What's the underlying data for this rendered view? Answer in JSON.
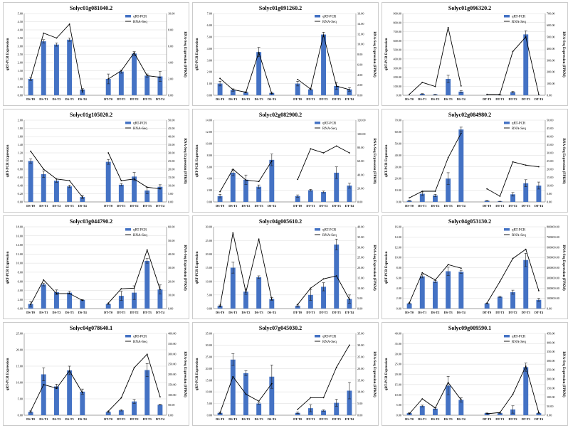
{
  "colors": {
    "bar": "#4472c4",
    "line": "#000000",
    "error_bar": "#222222",
    "grid": "#d9d9d9",
    "axis": "#888888",
    "panel_border": "#bfbfbf",
    "text": "#000000"
  },
  "chart_data": [
    {
      "type": "bar+line",
      "title": "Solyc01g081040.2",
      "ylabel": "qRT-PCR Expression",
      "y2label": "RNA-Seq Expression (FPKM)",
      "legend": [
        "qRT-PCR",
        "RNA-Seq"
      ],
      "legend_position": "top-right",
      "categories": [
        "DS-T0",
        "DS-T1",
        "DS-T2",
        "DS-T3",
        "DS-T4",
        "DT-T0",
        "DT-T1",
        "DT-T2",
        "DT-T3",
        "DT-T4"
      ],
      "ylim": [
        0,
        5
      ],
      "yticks": [
        "0.00",
        "0.50",
        "1.00",
        "1.50",
        "2.00",
        "2.50",
        "3.00",
        "3.50",
        "4.00",
        "4.50",
        "5.00"
      ],
      "y2lim": [
        0,
        10
      ],
      "y2ticks": [
        "0.00",
        "2.00",
        "4.00",
        "6.00",
        "8.00",
        "10.00"
      ],
      "qrt_pcr": [
        1.0,
        3.3,
        3.1,
        3.4,
        0.35,
        1.0,
        1.45,
        2.55,
        1.2,
        1.15
      ],
      "error": [
        0.1,
        0.1,
        0.1,
        0.1,
        0.05,
        0.3,
        0.1,
        0.12,
        0.1,
        0.3
      ],
      "rna_seq": [
        2.0,
        7.6,
        7.0,
        8.7,
        0.4,
        2.0,
        3.0,
        5.2,
        2.4,
        2.2
      ]
    },
    {
      "type": "bar+line",
      "title": "Solyc01g091260.2",
      "ylabel": "qRT-PCR Expression",
      "y2label": "RNA-Seq Expression (FPKM)",
      "legend": [
        "qRT-PCR",
        "RNA-Seq"
      ],
      "legend_position": "top-right",
      "categories": [
        "DS-T0",
        "DS-T1",
        "DS-T2",
        "DS-T3",
        "DS-T4",
        "DT-T0",
        "DT-T1",
        "DT-T2",
        "DT-T3",
        "DT-T4"
      ],
      "ylim": [
        0,
        7
      ],
      "yticks": [
        "0.00",
        "1.00",
        "2.00",
        "3.00",
        "4.00",
        "5.00",
        "6.00",
        "7.00"
      ],
      "y2lim": [
        0,
        16
      ],
      "y2ticks": [
        "0.00",
        "2.00",
        "4.00",
        "6.00",
        "8.00",
        "10.00",
        "12.00",
        "14.00",
        "16.00"
      ],
      "qrt_pcr": [
        1.0,
        0.45,
        0.25,
        3.7,
        0.2,
        1.0,
        0.5,
        5.2,
        0.8,
        0.5
      ],
      "error": [
        0.2,
        0.1,
        0.05,
        0.4,
        0.05,
        0.2,
        0.05,
        0.2,
        0.3,
        0.15
      ],
      "rna_seq": [
        3.3,
        1.1,
        0.6,
        8.4,
        0.3,
        3.1,
        1.2,
        11.8,
        1.8,
        1.1
      ]
    },
    {
      "type": "bar+line",
      "title": "Solyc01g096320.2",
      "ylabel": "qRT-PCR Expression",
      "y2label": "RNA-Seq Expression (FPKM)",
      "legend": [
        "qRT-PCR",
        "RNA-Seq"
      ],
      "legend_position": "top-right",
      "categories": [
        "DS-T0",
        "DS-T1",
        "DS-T2",
        "DS-T3",
        "DS-T4",
        "DT-T0",
        "DT-T1",
        "DT-T2",
        "DT-T3",
        "DT-T4"
      ],
      "ylim": [
        0,
        900
      ],
      "yticks": [
        "0.00",
        "100.00",
        "200.00",
        "300.00",
        "400.00",
        "500.00",
        "600.00",
        "700.00",
        "800.00",
        "900.00"
      ],
      "y2lim": [
        0,
        700
      ],
      "y2ticks": [
        "0.00",
        "100.00",
        "200.00",
        "300.00",
        "400.00",
        "500.00",
        "600.00",
        "700.00"
      ],
      "qrt_pcr": [
        1,
        15,
        8,
        180,
        40,
        1,
        3,
        35,
        670,
        1
      ],
      "error": [
        0,
        3,
        2,
        40,
        10,
        0,
        1,
        8,
        40,
        0
      ],
      "rna_seq": [
        8,
        110,
        75,
        580,
        80,
        8,
        10,
        375,
        500,
        8
      ]
    },
    {
      "type": "bar+line",
      "title": "Solyc01g105020.2",
      "ylabel": "qRT-PCR Expression",
      "y2label": "RNA-Seq Expression (FPKM)",
      "legend": [
        "qRT-PCR",
        "RNA-Seq"
      ],
      "legend_position": "top-right",
      "categories": [
        "DS-T0",
        "DS-T1",
        "DS-T2",
        "DS-T3",
        "DS-T4",
        "DT-T0",
        "DT-T1",
        "DT-T2",
        "DT-T3",
        "DT-T4"
      ],
      "ylim": [
        0,
        2
      ],
      "yticks": [
        "0.00",
        "0.20",
        "0.40",
        "0.60",
        "0.80",
        "1.00",
        "1.20",
        "1.40",
        "1.60",
        "1.80",
        "2.00"
      ],
      "y2lim": [
        0,
        50
      ],
      "y2ticks": [
        "0.00",
        "5.00",
        "10.00",
        "15.00",
        "20.00",
        "25.00",
        "30.00",
        "35.00",
        "40.00",
        "45.00",
        "50.00"
      ],
      "qrt_pcr": [
        1.0,
        0.68,
        0.52,
        0.38,
        0.12,
        0.98,
        0.42,
        0.62,
        0.28,
        0.37
      ],
      "error": [
        0.05,
        0.08,
        0.04,
        0.03,
        0.04,
        0.06,
        0.03,
        0.1,
        0.08,
        0.05
      ],
      "rna_seq": [
        31,
        20,
        14,
        13,
        3,
        30,
        13,
        14,
        9,
        8
      ]
    },
    {
      "type": "bar+line",
      "title": "Solyc02g082900.2",
      "ylabel": "qRT-PCR Expression",
      "y2label": "RNA-Seq Expression (FPKM)",
      "legend": [
        "qRT-PCR",
        "RNA-Seq"
      ],
      "legend_position": "top-right",
      "categories": [
        "DS-T0",
        "DS-T1",
        "DS-T2",
        "DS-T3",
        "DS-T4",
        "DT-T0",
        "DT-T1",
        "DT-T2",
        "DT-T3",
        "DT-T4"
      ],
      "ylim": [
        0,
        14
      ],
      "yticks": [
        "0.00",
        "2.00",
        "4.00",
        "6.00",
        "8.00",
        "10.00",
        "12.00",
        "14.00"
      ],
      "y2lim": [
        0,
        120
      ],
      "y2ticks": [
        "0.00",
        "20.00",
        "40.00",
        "60.00",
        "80.00",
        "100.00",
        "120.00"
      ],
      "qrt_pcr": [
        1.0,
        5.0,
        3.8,
        2.6,
        7.2,
        1.0,
        2.0,
        1.7,
        5.0,
        2.8
      ],
      "error": [
        0.3,
        0.5,
        0.8,
        0.3,
        1.0,
        0.2,
        0.15,
        0.15,
        1.0,
        0.4
      ],
      "rna_seq": [
        15,
        48,
        32,
        30,
        60,
        33,
        78,
        72,
        82,
        72
      ]
    },
    {
      "type": "bar+line",
      "title": "Solyc02g084980.2",
      "ylabel": "qRT-PCR Expression",
      "y2label": "RNA-Seq Expression (FPKM)",
      "legend": [
        "qRT-PCR",
        "RNA-Seq"
      ],
      "legend_position": "top-right",
      "categories": [
        "DS-T0",
        "DS-T1",
        "DS-T2",
        "DS-T3",
        "DS-T4",
        "DT-T0",
        "DT-T1",
        "DT-T2",
        "DT-T3",
        "DT-T4"
      ],
      "ylim": [
        0,
        70
      ],
      "yticks": [
        "0.00",
        "10.00",
        "20.00",
        "30.00",
        "40.00",
        "50.00",
        "60.00",
        "70.00"
      ],
      "y2lim": [
        0,
        50
      ],
      "y2ticks": [
        "0.00",
        "5.00",
        "10.00",
        "15.00",
        "20.00",
        "25.00",
        "30.00",
        "35.00",
        "40.00",
        "45.00",
        "50.00"
      ],
      "qrt_pcr": [
        1.0,
        7.0,
        5.5,
        20,
        62,
        1.0,
        0.5,
        6.5,
        16,
        14
      ],
      "error": [
        0.3,
        1.5,
        1.0,
        5.0,
        2.0,
        0.2,
        0.1,
        1.5,
        3.0,
        3.0
      ],
      "rna_seq": [
        2.5,
        6.5,
        6.5,
        27,
        42,
        8,
        3.5,
        24.5,
        22.5,
        21.5
      ]
    },
    {
      "type": "bar+line",
      "title": "Solyc03g044790.2",
      "ylabel": "qRT-PCR Expression",
      "y2label": "RNA-Seq Expression (FPKM)",
      "legend": [
        "qRT-PCR",
        "RNA-Seq"
      ],
      "legend_position": "top-right",
      "categories": [
        "DS-T0",
        "DS-T1",
        "DS-T2",
        "DS-T3",
        "DS-T4",
        "DT-T0",
        "DT-T1",
        "DT-T2",
        "DT-T3",
        "DT-T4"
      ],
      "ylim": [
        0,
        18
      ],
      "yticks": [
        "0.00",
        "2.00",
        "4.00",
        "6.00",
        "8.00",
        "10.00",
        "12.00",
        "14.00",
        "16.00",
        "18.00"
      ],
      "y2lim": [
        0,
        60
      ],
      "y2ticks": [
        "0.00",
        "10.00",
        "20.00",
        "30.00",
        "40.00",
        "50.00",
        "60.00"
      ],
      "qrt_pcr": [
        1.0,
        5.3,
        3.6,
        3.5,
        1.9,
        1.0,
        2.8,
        3.5,
        10.5,
        4.2
      ],
      "error": [
        0.5,
        0.3,
        0.5,
        0.3,
        0.1,
        0.1,
        1.0,
        1.5,
        0.5,
        1.0
      ],
      "rna_seq": [
        3,
        21,
        11,
        11,
        6,
        4,
        14.5,
        15,
        43,
        14
      ]
    },
    {
      "type": "bar+line",
      "title": "Solyc04g005610.2",
      "ylabel": "qRT-PCR Expression",
      "y2label": "RNA-Seq Expression (FPKM)",
      "legend": [
        "qRT-PCR",
        "RNA-Seq"
      ],
      "legend_position": "top-right",
      "categories": [
        "DS-T0",
        "DS-T1",
        "DS-T2",
        "DS-T3",
        "DS-T4",
        "DT-T0",
        "DT-T1",
        "DT-T2",
        "DT-T3",
        "DT-T4"
      ],
      "ylim": [
        0,
        30
      ],
      "yticks": [
        "0.00",
        "5.00",
        "10.00",
        "15.00",
        "20.00",
        "25.00",
        "30.00"
      ],
      "y2lim": [
        0,
        40
      ],
      "y2ticks": [
        "0.00",
        "5.00",
        "10.00",
        "15.00",
        "20.00",
        "25.00",
        "30.00",
        "35.00",
        "40.00"
      ],
      "qrt_pcr": [
        1.0,
        15,
        6.2,
        11.5,
        3.5,
        1.0,
        5.0,
        8.0,
        23.5,
        3.5
      ],
      "error": [
        0.3,
        2.0,
        1.0,
        0.5,
        0.5,
        0.3,
        2.0,
        1.5,
        2.0,
        1.5
      ],
      "rna_seq": [
        1,
        37,
        8,
        34,
        4.5,
        2,
        10,
        14.5,
        16,
        4.5
      ]
    },
    {
      "type": "bar+line",
      "title": "Solyc04g053130.2",
      "ylabel": "qRT-PCR Expression",
      "y2label": "RNA-Seq Expression (FPKM)",
      "legend": [
        "qRT-PCR",
        "RNA-Seq"
      ],
      "legend_position": "top-right",
      "categories": [
        "DS-T0",
        "DS-T1",
        "DS-T2",
        "DS-T3",
        "DS-T4",
        "DT-T0",
        "DT-T1",
        "DT-T2",
        "DT-T3",
        "DT-T4"
      ],
      "ylim": [
        0,
        16
      ],
      "yticks": [
        "0.00",
        "2.00",
        "4.00",
        "6.00",
        "8.00",
        "10.00",
        "12.00",
        "14.00",
        "16.00"
      ],
      "y2lim": [
        0,
        800000
      ],
      "y2ticks": [
        "0.00",
        "100000.00",
        "200000.00",
        "300000.00",
        "400000.00",
        "500000.00",
        "600000.00",
        "700000.00",
        "800000.00"
      ],
      "qrt_pcr": [
        1.0,
        6.3,
        5.3,
        7.3,
        7.2,
        1.0,
        2.3,
        3.2,
        9.5,
        1.7
      ],
      "error": [
        0.1,
        0.3,
        0.2,
        0.8,
        0.3,
        0.05,
        0.1,
        0.4,
        1.3,
        0.3
      ],
      "rna_seq": [
        55000,
        350000,
        280000,
        430000,
        395000,
        55000,
        265000,
        490000,
        580000,
        175000
      ]
    },
    {
      "type": "bar+line",
      "title": "Solyc04g078640.1",
      "ylabel": "qRT-PCR Expression",
      "y2label": "RNA-Seq Expression (FPKM)",
      "legend": [
        "qRT-PCR",
        "RNA-Seq"
      ],
      "legend_position": "top-right",
      "categories": [
        "DS-T0",
        "DS-T1",
        "DS-T2",
        "DS-T3",
        "DS-T4",
        "DT-T0",
        "DT-T1",
        "DT-T2",
        "DT-T3",
        "DT-T4"
      ],
      "ylim": [
        0,
        25
      ],
      "yticks": [
        "0.00",
        "5.00",
        "10.00",
        "15.00",
        "20.00",
        "25.00"
      ],
      "y2lim": [
        0,
        400
      ],
      "y2ticks": [
        "0.00",
        "50.00",
        "100.00",
        "150.00",
        "200.00",
        "250.00",
        "300.00",
        "350.00",
        "400.00"
      ],
      "qrt_pcr": [
        1.0,
        12.5,
        8.8,
        13.7,
        7.2,
        1.0,
        1.5,
        4.2,
        13.8,
        3.2
      ],
      "error": [
        0.3,
        2.0,
        0.7,
        1.3,
        0.8,
        0.2,
        0.2,
        0.6,
        2.0,
        0.1
      ],
      "rna_seq": [
        20,
        150,
        132,
        217,
        110,
        20,
        85,
        232,
        298,
        90
      ]
    },
    {
      "type": "bar+line",
      "title": "Solyc07g045030.2",
      "ylabel": "qRT-PCR Expression",
      "y2label": "RNA-Seq Expression (FPKM)",
      "legend": [
        "qRT-PCR",
        "RNA-Seq"
      ],
      "legend_position": "top-right",
      "categories": [
        "DS-T0",
        "DS-T1",
        "DS-T2",
        "DS-T3",
        "DS-T4",
        "DT-T0",
        "DT-T1",
        "DT-T2",
        "DT-T3",
        "DT-T4"
      ],
      "ylim": [
        0,
        35
      ],
      "yticks": [
        "0.00",
        "5.00",
        "10.00",
        "15.00",
        "20.00",
        "25.00",
        "30.00",
        "35.00"
      ],
      "y2lim": [
        0,
        35
      ],
      "y2ticks": [
        "0.00",
        "5.00",
        "10.00",
        "15.00",
        "20.00",
        "25.00",
        "30.00",
        "35.00"
      ],
      "qrt_pcr": [
        1.0,
        23.8,
        18,
        5.0,
        16.5,
        1.0,
        3.0,
        2.0,
        5.3,
        10.5
      ],
      "error": [
        0.3,
        2.5,
        1.0,
        0.3,
        5.0,
        0.3,
        1.5,
        0.3,
        1.5,
        3.5
      ],
      "rna_seq": [
        1.0,
        16.5,
        9.0,
        6.0,
        13.5,
        2.5,
        7.5,
        7.5,
        20.5,
        30
      ]
    },
    {
      "type": "bar+line",
      "title": "Solyc09g009590.1",
      "ylabel": "qRT-PCR Expression",
      "y2label": "RNA-Seq Expression (FPKM)",
      "legend": [
        "qRT-PCR",
        "RNA-Seq"
      ],
      "legend_position": "top-right",
      "categories": [
        "DS-T0",
        "DS-T1",
        "DS-T2",
        "DS-T3",
        "DS-T4",
        "DT-T0",
        "DT-T1",
        "DT-T2",
        "DT-T3",
        "DT-T4"
      ],
      "ylim": [
        0,
        40
      ],
      "yticks": [
        "0.00",
        "5.00",
        "10.00",
        "15.00",
        "20.00",
        "25.00",
        "30.00",
        "35.00",
        "40.00"
      ],
      "y2lim": [
        0,
        450
      ],
      "y2ticks": [
        "0.00",
        "50.00",
        "100.00",
        "150.00",
        "200.00",
        "250.00",
        "300.00",
        "350.00",
        "400.00",
        "450.00"
      ],
      "qrt_pcr": [
        1.0,
        4.5,
        3.2,
        14.5,
        7.5,
        1.0,
        1.0,
        2.8,
        23.5,
        1.0
      ],
      "error": [
        0.2,
        0.4,
        0.4,
        4.5,
        1.0,
        0.1,
        0.1,
        1.8,
        2.0,
        0.1
      ],
      "rna_seq": [
        8,
        90,
        40,
        180,
        85,
        8,
        15,
        115,
        270,
        15
      ]
    }
  ]
}
